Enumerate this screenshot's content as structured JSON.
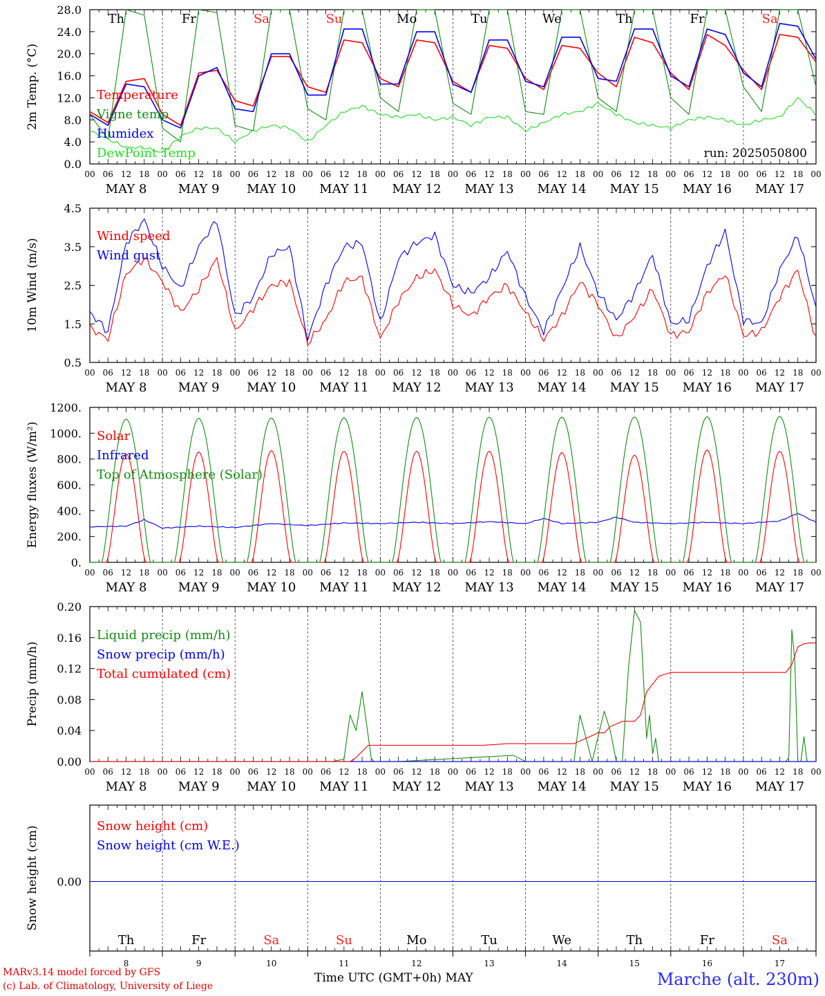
{
  "run_label": "run: 2025050800",
  "dates": [
    "MAY  8",
    "MAY  9",
    "MAY 10",
    "MAY 11",
    "MAY 12",
    "MAY 13",
    "MAY 14",
    "MAY 15",
    "MAY 16",
    "MAY 17"
  ],
  "day_numbers": [
    "8",
    "9",
    "10",
    "11",
    "12",
    "13",
    "14",
    "15",
    "16",
    "17"
  ],
  "weekdays": [
    "Th",
    "Fr",
    "Sa",
    "Su",
    "Mo",
    "Tu",
    "We",
    "Th",
    "Fr",
    "Sa"
  ],
  "weekend": [
    false,
    false,
    true,
    true,
    false,
    false,
    false,
    false,
    false,
    true
  ],
  "hour_ticks": [
    "00",
    "06",
    "12",
    "18"
  ],
  "footer": {
    "credit1": "MARv3.14 model forced by GFS",
    "credit2": "(c) Lab. of Climatology, University of Liege",
    "xaxis_title": "Time UTC (GMT+0h) MAY",
    "station": "Marche (alt. 230m)"
  },
  "colors": {
    "red": "#ff0000",
    "green": "#138a13",
    "blue": "#0000ee",
    "light_green": "#22dd22"
  },
  "chart_data": [
    {
      "type": "line",
      "ylabel": "2m Temp. (°C)",
      "ylim": [
        0,
        28
      ],
      "yticks": [
        "0.0",
        "4.0",
        "8.0",
        "12.0",
        "16.0",
        "20.0",
        "24.0",
        "28.0"
      ],
      "series": [
        {
          "name": "Temperature",
          "color": "#ff0000",
          "x": [
            0,
            6,
            12,
            18,
            24,
            30,
            36,
            42,
            48,
            54,
            60,
            66,
            72,
            78,
            84,
            90,
            96,
            102,
            108,
            114,
            120,
            126,
            132,
            138,
            144,
            150,
            156,
            162,
            168,
            174,
            180,
            186,
            192,
            198,
            204,
            210,
            216,
            222,
            228,
            234,
            240
          ],
          "values": [
            9.5,
            7.5,
            15.0,
            15.5,
            9.0,
            7.0,
            16.5,
            17.0,
            11.5,
            10.5,
            19.5,
            19.5,
            14.0,
            13.0,
            22.5,
            22.0,
            15.5,
            14.0,
            22.5,
            22.0,
            15.0,
            13.0,
            21.5,
            21.0,
            15.5,
            13.5,
            21.5,
            21.0,
            16.5,
            14.0,
            23.0,
            22.0,
            16.5,
            13.5,
            23.5,
            21.5,
            17.0,
            13.5,
            23.5,
            23.0,
            18.5
          ]
        },
        {
          "name": "Vigne temp",
          "color": "#138a13",
          "x": [
            0,
            6,
            12,
            18,
            24,
            30,
            36,
            42,
            48,
            54,
            60,
            66,
            72,
            78,
            84,
            90,
            96,
            102,
            108,
            114,
            120,
            126,
            132,
            138,
            144,
            150,
            156,
            162,
            168,
            174,
            180,
            186,
            192,
            198,
            204,
            210,
            216,
            222,
            228,
            234,
            240
          ],
          "values": [
            9.0,
            4.5,
            28.0,
            27.0,
            6.5,
            4.0,
            28.0,
            27.5,
            7.0,
            6.0,
            28.0,
            28.0,
            10.0,
            8.0,
            28.0,
            28.0,
            12.0,
            9.5,
            28.0,
            28.0,
            11.0,
            9.0,
            28.0,
            28.0,
            9.5,
            9.0,
            28.0,
            28.0,
            12.0,
            9.5,
            28.0,
            28.0,
            12.0,
            9.0,
            28.0,
            28.0,
            14.0,
            9.5,
            28.0,
            28.0,
            14.0
          ]
        },
        {
          "name": "Humidex",
          "color": "#0000ee",
          "x": [
            0,
            6,
            12,
            18,
            24,
            30,
            36,
            42,
            48,
            54,
            60,
            66,
            72,
            78,
            84,
            90,
            96,
            102,
            108,
            114,
            120,
            126,
            132,
            138,
            144,
            150,
            156,
            162,
            168,
            174,
            180,
            186,
            192,
            198,
            204,
            210,
            216,
            222,
            228,
            234,
            240
          ],
          "values": [
            9.0,
            7.0,
            14.5,
            14.0,
            8.0,
            6.5,
            16.0,
            17.5,
            10.0,
            9.5,
            20.0,
            20.0,
            12.5,
            12.5,
            24.5,
            24.5,
            14.5,
            14.5,
            24.0,
            24.0,
            14.5,
            13.0,
            22.5,
            22.5,
            15.0,
            14.0,
            23.0,
            23.0,
            15.5,
            15.0,
            24.5,
            24.5,
            16.0,
            14.0,
            24.5,
            23.5,
            16.5,
            14.0,
            25.5,
            25.0,
            19.0
          ]
        },
        {
          "name": "DewPoint Temp",
          "color": "#22dd22",
          "x": [
            0,
            6,
            12,
            18,
            24,
            30,
            36,
            42,
            48,
            54,
            60,
            66,
            72,
            78,
            84,
            90,
            96,
            102,
            108,
            114,
            120,
            126,
            132,
            138,
            144,
            150,
            156,
            162,
            168,
            174,
            180,
            186,
            192,
            198,
            204,
            210,
            216,
            222,
            228,
            234,
            240
          ],
          "values": [
            6.0,
            4.5,
            3.0,
            3.0,
            2.0,
            5.0,
            6.5,
            6.5,
            4.0,
            6.0,
            7.0,
            6.5,
            4.0,
            7.0,
            9.5,
            10.5,
            9.0,
            8.5,
            9.0,
            8.0,
            8.5,
            7.0,
            8.5,
            8.5,
            6.0,
            7.5,
            9.0,
            9.5,
            11.0,
            9.0,
            7.5,
            7.0,
            6.5,
            8.0,
            8.5,
            8.0,
            7.0,
            8.0,
            8.5,
            12.0,
            9.0
          ]
        }
      ]
    },
    {
      "type": "line",
      "ylabel": "10m Wind (m/s)",
      "ylim": [
        0.5,
        4.5
      ],
      "yticks": [
        "0.5",
        "1.5",
        "2.5",
        "3.5",
        "4.5"
      ],
      "series": [
        {
          "name": "Wind speed",
          "color": "#ff0000",
          "x": [
            0,
            6,
            12,
            18,
            24,
            30,
            36,
            42,
            48,
            54,
            60,
            66,
            72,
            78,
            84,
            90,
            96,
            102,
            108,
            114,
            120,
            126,
            132,
            138,
            144,
            150,
            156,
            162,
            168,
            174,
            180,
            186,
            192,
            198,
            204,
            210,
            216,
            222,
            228,
            234,
            240
          ],
          "values": [
            1.4,
            1.1,
            2.8,
            3.2,
            2.6,
            1.8,
            2.4,
            3.2,
            1.3,
            1.9,
            2.5,
            2.6,
            1.0,
            1.6,
            2.6,
            2.7,
            1.1,
            2.1,
            2.7,
            2.9,
            2.0,
            1.7,
            2.2,
            2.5,
            1.8,
            1.1,
            1.7,
            2.6,
            2.0,
            1.1,
            1.7,
            2.4,
            1.2,
            1.3,
            2.3,
            2.8,
            1.2,
            1.3,
            2.2,
            2.9,
            1.1
          ]
        },
        {
          "name": "Wind gust",
          "color": "#0000ee",
          "x": [
            0,
            6,
            12,
            18,
            24,
            30,
            36,
            42,
            48,
            54,
            60,
            66,
            72,
            78,
            84,
            90,
            96,
            102,
            108,
            114,
            120,
            126,
            132,
            138,
            144,
            150,
            156,
            162,
            168,
            174,
            180,
            186,
            192,
            198,
            204,
            210,
            216,
            222,
            228,
            234,
            240
          ],
          "values": [
            1.8,
            1.3,
            3.6,
            4.2,
            3.0,
            2.4,
            3.5,
            4.2,
            1.7,
            2.2,
            3.3,
            3.5,
            1.1,
            2.5,
            3.5,
            3.6,
            1.5,
            3.2,
            3.6,
            3.8,
            2.5,
            2.3,
            2.7,
            3.4,
            2.2,
            1.3,
            2.4,
            3.5,
            2.3,
            1.6,
            2.3,
            3.3,
            1.5,
            1.6,
            3.0,
            3.9,
            1.6,
            1.5,
            2.9,
            3.8,
            1.9
          ]
        }
      ]
    },
    {
      "type": "line",
      "ylabel": "Energy fluxes (W/m²)",
      "ylim": [
        0,
        1200
      ],
      "yticks": [
        "0.",
        "200.",
        "400.",
        "600.",
        "800.",
        "1000.",
        "1200."
      ],
      "series": [
        {
          "name": "Solar",
          "color": "#ff0000",
          "peaks": [
            840,
            855,
            865,
            860,
            860,
            860,
            850,
            830,
            870,
            860
          ]
        },
        {
          "name": "Infrared",
          "color": "#0000ee",
          "x": [
            0,
            12,
            18,
            24,
            36,
            48,
            60,
            72,
            84,
            96,
            108,
            120,
            132,
            144,
            150,
            156,
            168,
            174,
            180,
            192,
            204,
            216,
            228,
            234,
            240
          ],
          "values": [
            275,
            280,
            330,
            265,
            280,
            270,
            300,
            285,
            305,
            300,
            310,
            300,
            315,
            300,
            340,
            300,
            310,
            350,
            310,
            300,
            310,
            300,
            320,
            380,
            310
          ]
        },
        {
          "name": "Top of Atmosphere (Solar)",
          "color": "#138a13",
          "peaks": [
            1110,
            1115,
            1118,
            1120,
            1122,
            1124,
            1125,
            1126,
            1128,
            1130
          ]
        }
      ]
    },
    {
      "type": "line",
      "ylabel": "Precip (mm/h)",
      "ylim": [
        0,
        0.2
      ],
      "yticks": [
        "0.00",
        "0.04",
        "0.08",
        "0.12",
        "0.16",
        "0.20"
      ],
      "series": [
        {
          "name": "Liquid precip (mm/h)",
          "color": "#138a13",
          "x": [
            0,
            70,
            80,
            84,
            86,
            88,
            90,
            93,
            94,
            95,
            96,
            100,
            102,
            140,
            144,
            146,
            160,
            162,
            164,
            166,
            170,
            172,
            174,
            176,
            178,
            180,
            182,
            184,
            185,
            186,
            187,
            188,
            190,
            192,
            230,
            231,
            232,
            233,
            234,
            235,
            236,
            237,
            238,
            239,
            240
          ],
          "values": [
            0,
            0,
            0,
            0.003,
            0.06,
            0.04,
            0.09,
            0.004,
            0,
            0,
            0,
            0,
            0,
            0.008,
            0,
            0,
            0,
            0.06,
            0.03,
            0,
            0.065,
            0.04,
            0,
            0,
            0.12,
            0.195,
            0.18,
            0.03,
            0.06,
            0.01,
            0.03,
            0,
            0,
            0,
            0,
            0.005,
            0.17,
            0.13,
            0,
            0,
            0.032,
            0,
            0,
            0,
            0
          ]
        },
        {
          "name": "Snow precip (mm/h)",
          "color": "#0000ee",
          "x": [
            0,
            240
          ],
          "values": [
            0,
            0
          ]
        },
        {
          "name": "Total cumulated (cm)",
          "color": "#ff0000",
          "x": [
            0,
            86,
            88,
            92,
            130,
            134,
            138,
            160,
            164,
            168,
            170,
            172,
            176,
            178,
            180,
            182,
            184,
            188,
            192,
            230,
            232,
            234,
            236,
            238,
            240
          ],
          "values": [
            0,
            0,
            0.005,
            0.021,
            0.021,
            0.022,
            0.023,
            0.023,
            0.03,
            0.037,
            0.037,
            0.045,
            0.052,
            0.052,
            0.052,
            0.06,
            0.09,
            0.11,
            0.115,
            0.115,
            0.125,
            0.148,
            0.152,
            0.153,
            0.153
          ]
        }
      ]
    },
    {
      "type": "line",
      "ylabel": "Snow height (cm)",
      "yticks": [
        "0.00"
      ],
      "series": [
        {
          "name": "Snow height (cm)",
          "color": "#ff0000",
          "x": [
            0,
            240
          ],
          "values": [
            0,
            0
          ]
        },
        {
          "name": "Snow height (cm W.E.)",
          "color": "#0000ee",
          "x": [
            0,
            240
          ],
          "values": [
            0,
            0
          ]
        }
      ]
    }
  ]
}
